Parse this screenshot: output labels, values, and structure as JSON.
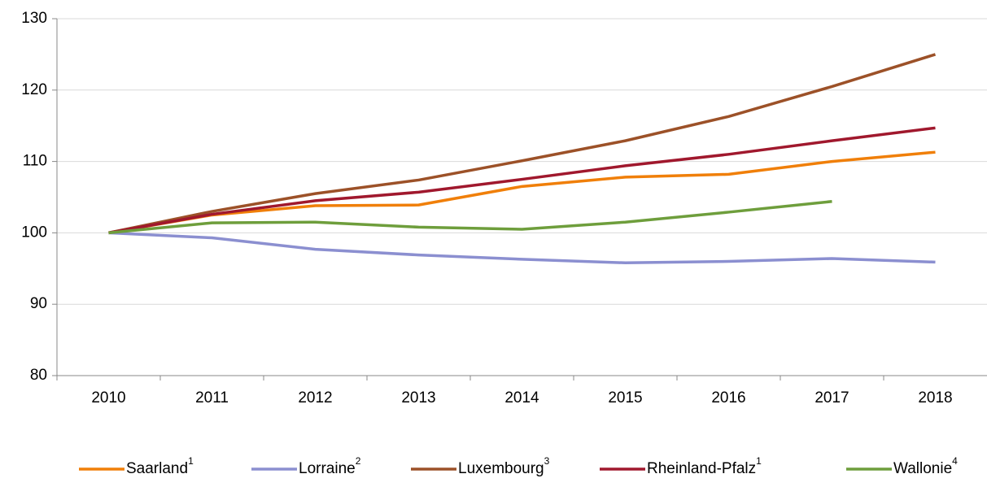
{
  "chart_data": {
    "type": "line",
    "categories": [
      "2010",
      "2011",
      "2012",
      "2013",
      "2014",
      "2015",
      "2016",
      "2017",
      "2018"
    ],
    "series": [
      {
        "name": "Saarland",
        "superscript": "1",
        "color": "#f07f09",
        "values": [
          100,
          102.5,
          103.8,
          103.9,
          106.5,
          107.8,
          108.2,
          110,
          111.3
        ]
      },
      {
        "name": "Lorraine",
        "superscript": "2",
        "color": "#8b8fd0",
        "values": [
          100,
          99.3,
          97.7,
          96.9,
          96.3,
          95.8,
          96.0,
          96.4,
          95.9
        ]
      },
      {
        "name": "Luxembourg",
        "superscript": "3",
        "color": "#9c5128",
        "values": [
          100,
          103,
          105.5,
          107.4,
          110.1,
          112.9,
          116.3,
          120.5,
          125
        ]
      },
      {
        "name": "Rheinland-Pfalz",
        "superscript": "1",
        "color": "#a0182d",
        "values": [
          100,
          102.6,
          104.5,
          105.7,
          107.5,
          109.4,
          111.0,
          112.9,
          114.7
        ]
      },
      {
        "name": "Wallonie",
        "superscript": "4",
        "color": "#6e9e3c",
        "values": [
          100,
          101.4,
          101.5,
          100.8,
          100.5,
          101.5,
          102.9,
          104.4,
          null
        ]
      }
    ],
    "ylim": [
      80,
      130
    ],
    "yticks": [
      80,
      90,
      100,
      110,
      120,
      130
    ],
    "grid": true,
    "legend": "bottom"
  }
}
